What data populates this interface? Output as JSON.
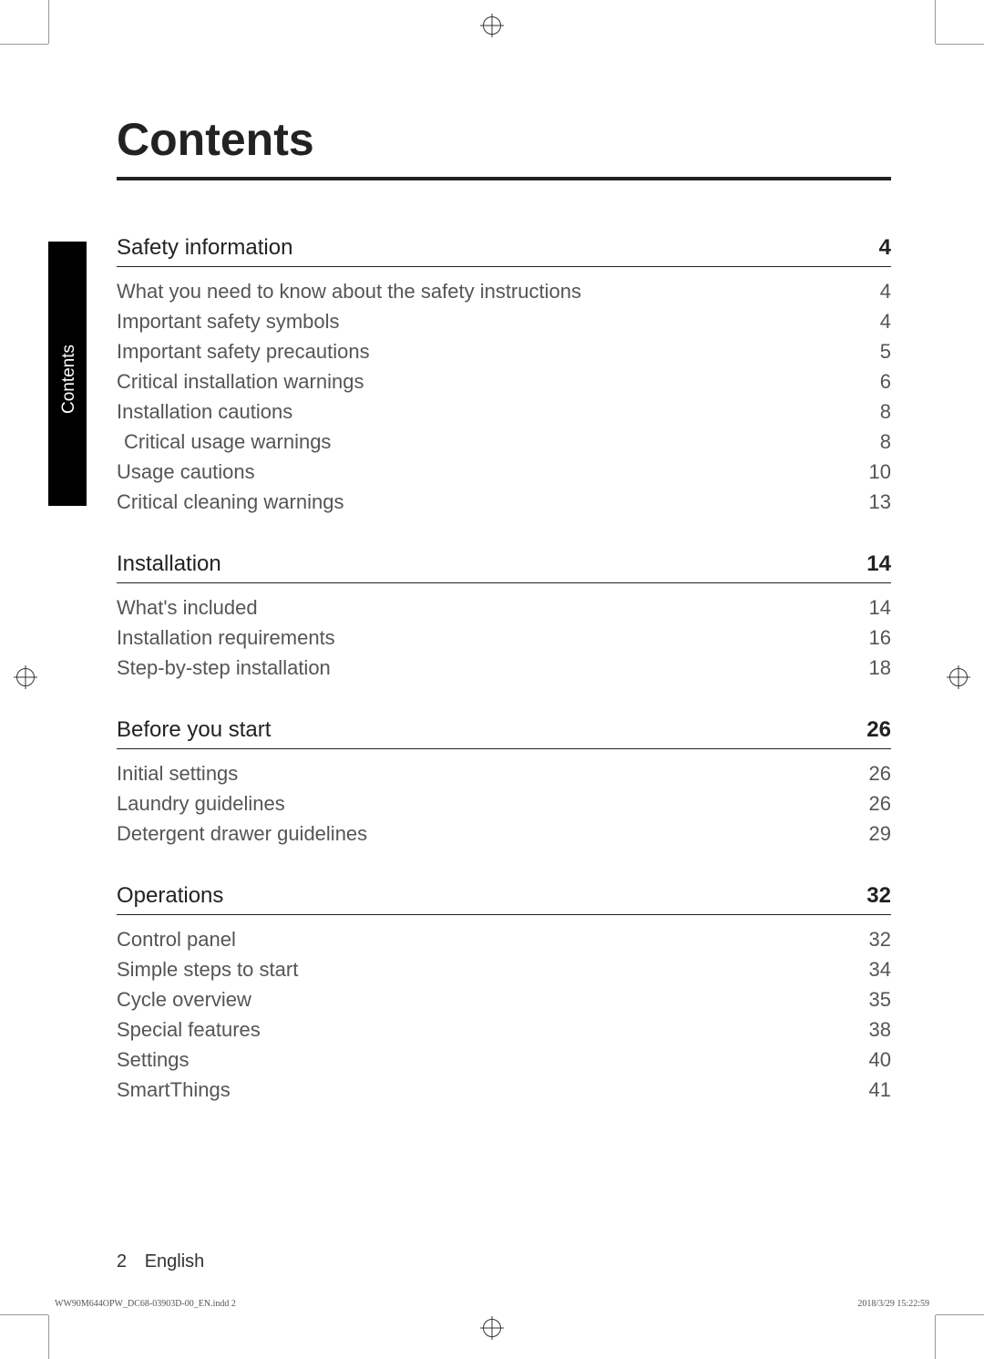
{
  "page_title": "Contents",
  "side_tab": "Contents",
  "sections": [
    {
      "title": "Safety information",
      "page": "4",
      "entries": [
        {
          "text": "What you need to know about the safety instructions",
          "page": "4",
          "indent": false
        },
        {
          "text": "Important safety symbols",
          "page": "4",
          "indent": false
        },
        {
          "text": "Important safety precautions",
          "page": "5",
          "indent": false
        },
        {
          "text": "Critical installation warnings",
          "page": "6",
          "indent": false
        },
        {
          "text": "Installation cautions",
          "page": "8",
          "indent": false
        },
        {
          "text": "Critical usage warnings",
          "page": "8",
          "indent": true
        },
        {
          "text": "Usage cautions",
          "page": "10",
          "indent": false
        },
        {
          "text": "Critical cleaning warnings",
          "page": "13",
          "indent": false
        }
      ]
    },
    {
      "title": "Installation",
      "page": "14",
      "entries": [
        {
          "text": "What's included",
          "page": "14",
          "indent": false
        },
        {
          "text": "Installation requirements",
          "page": "16",
          "indent": false
        },
        {
          "text": "Step-by-step installation",
          "page": "18",
          "indent": false
        }
      ]
    },
    {
      "title": "Before you start",
      "page": "26",
      "entries": [
        {
          "text": "Initial settings",
          "page": "26",
          "indent": false
        },
        {
          "text": "Laundry guidelines",
          "page": "26",
          "indent": false
        },
        {
          "text": "Detergent drawer guidelines",
          "page": "29",
          "indent": false
        }
      ]
    },
    {
      "title": "Operations",
      "page": "32",
      "entries": [
        {
          "text": "Control panel",
          "page": "32",
          "indent": false
        },
        {
          "text": "Simple steps to start",
          "page": "34",
          "indent": false
        },
        {
          "text": "Cycle overview",
          "page": "35",
          "indent": false
        },
        {
          "text": "Special features",
          "page": "38",
          "indent": false
        },
        {
          "text": "Settings",
          "page": "40",
          "indent": false
        },
        {
          "text": "SmartThings",
          "page": "41",
          "indent": false
        }
      ]
    }
  ],
  "footer": {
    "page_number": "2",
    "language": "English"
  },
  "print_footer": {
    "left": "WW90M644OPW_DC68-03903D-00_EN.indd   2",
    "right": "2018/3/29   15:22:59"
  },
  "colors": {
    "text_primary": "#222222",
    "text_secondary": "#555555",
    "tab_bg": "#000000",
    "tab_text": "#ffffff",
    "page_bg": "#ffffff"
  }
}
